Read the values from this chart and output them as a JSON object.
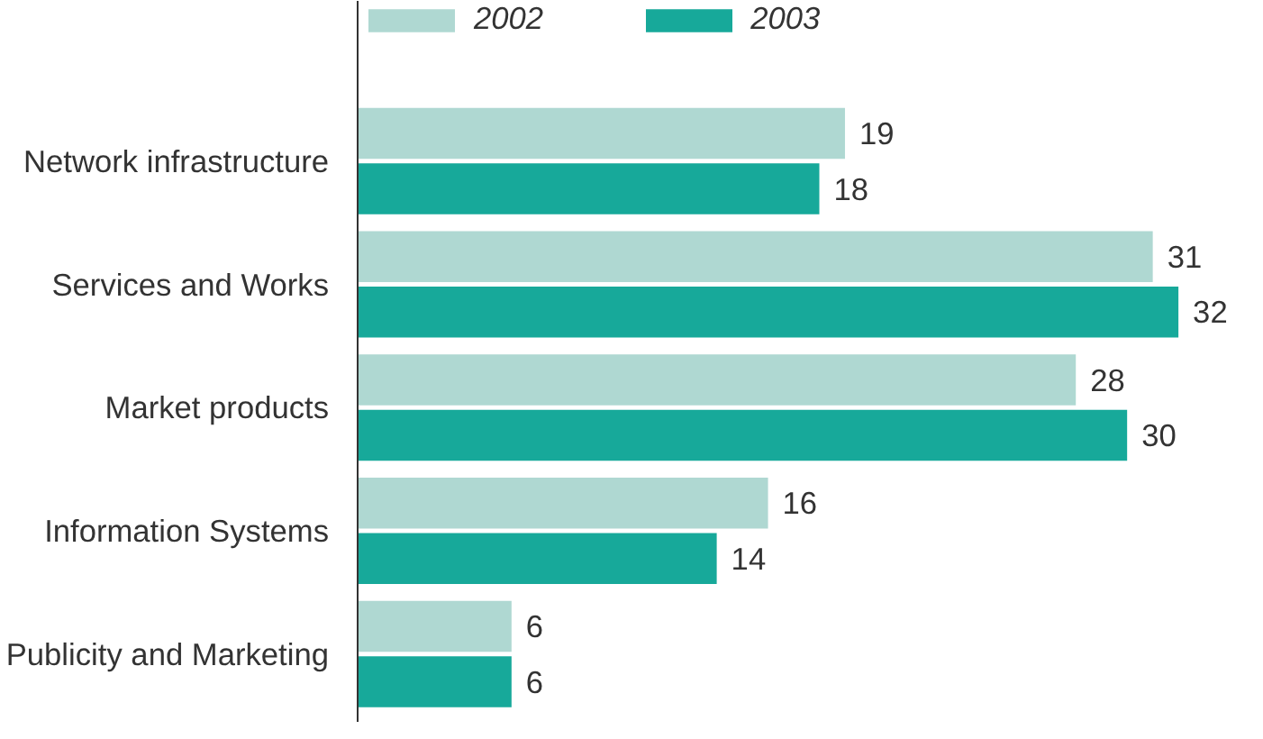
{
  "chart_data": {
    "type": "bar",
    "orientation": "horizontal",
    "categories": [
      "Network infrastructure",
      "Services and Works",
      "Market products",
      "Information Systems",
      "Publicity and Marketing"
    ],
    "series": [
      {
        "name": "2002",
        "color": "#afd8d2",
        "values": [
          19,
          31,
          28,
          16,
          6
        ]
      },
      {
        "name": "2003",
        "color": "#17a99a",
        "values": [
          18,
          32,
          30,
          14,
          6
        ]
      }
    ],
    "data_labels": true,
    "legend": "top",
    "grid": false
  }
}
